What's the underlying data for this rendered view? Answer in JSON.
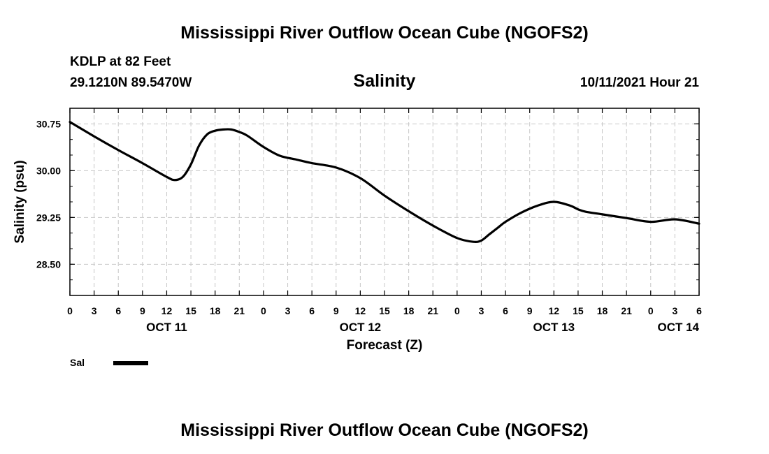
{
  "header": {
    "title": "Mississippi River Outflow Ocean Cube (NGOFS2)",
    "station": "KDLP at 82 Feet",
    "coords": "29.1210N  89.5470W",
    "run_time": "10/11/2021 Hour 21"
  },
  "footer": {
    "title": "Mississippi River Outflow Ocean Cube (NGOFS2)"
  },
  "chart_data": {
    "type": "line",
    "title": "Salinity",
    "xlabel": "Forecast (Z)",
    "ylabel": "Salinity (psu)",
    "ylim": [
      28.0,
      31.0
    ],
    "xlim": [
      0,
      78
    ],
    "x_unit": "hours since Oct 11 00Z",
    "y_ticks": [
      "30.75",
      "30.00",
      "29.25",
      "28.50"
    ],
    "y_tick_values": [
      30.75,
      30.0,
      29.25,
      28.5
    ],
    "x_ticks": [
      "0",
      "3",
      "6",
      "9",
      "12",
      "15",
      "18",
      "21",
      "0",
      "3",
      "6",
      "9",
      "12",
      "15",
      "18",
      "21",
      "0",
      "3",
      "6",
      "9",
      "12",
      "15",
      "18",
      "21",
      "0",
      "3",
      "6"
    ],
    "date_labels": [
      {
        "label": "OCT 11",
        "hour": 12
      },
      {
        "label": "OCT 12",
        "hour": 36
      },
      {
        "label": "OCT 13",
        "hour": 60
      },
      {
        "label": "OCT 14",
        "hour": 78
      }
    ],
    "grid": true,
    "legend": [
      {
        "name": "Sal",
        "color": "#000000"
      }
    ],
    "series": [
      {
        "name": "Sal",
        "color": "#000000",
        "x": [
          0,
          3,
          6,
          9,
          12,
          13,
          14,
          15,
          16,
          17,
          18,
          19,
          20,
          21,
          22,
          24,
          26,
          28,
          30,
          33,
          36,
          39,
          42,
          45,
          48,
          50,
          51,
          52,
          53,
          54,
          56,
          58,
          60,
          62,
          63,
          64,
          66,
          69,
          72,
          75,
          78
        ],
        "values": [
          30.78,
          30.55,
          30.33,
          30.12,
          29.9,
          29.85,
          29.9,
          30.1,
          30.4,
          30.58,
          30.64,
          30.66,
          30.66,
          30.62,
          30.56,
          30.38,
          30.24,
          30.18,
          30.12,
          30.05,
          29.88,
          29.6,
          29.35,
          29.12,
          28.92,
          28.86,
          28.88,
          28.98,
          29.08,
          29.18,
          29.33,
          29.44,
          29.5,
          29.44,
          29.38,
          29.34,
          29.3,
          29.24,
          29.18,
          29.22,
          29.15
        ]
      }
    ]
  }
}
